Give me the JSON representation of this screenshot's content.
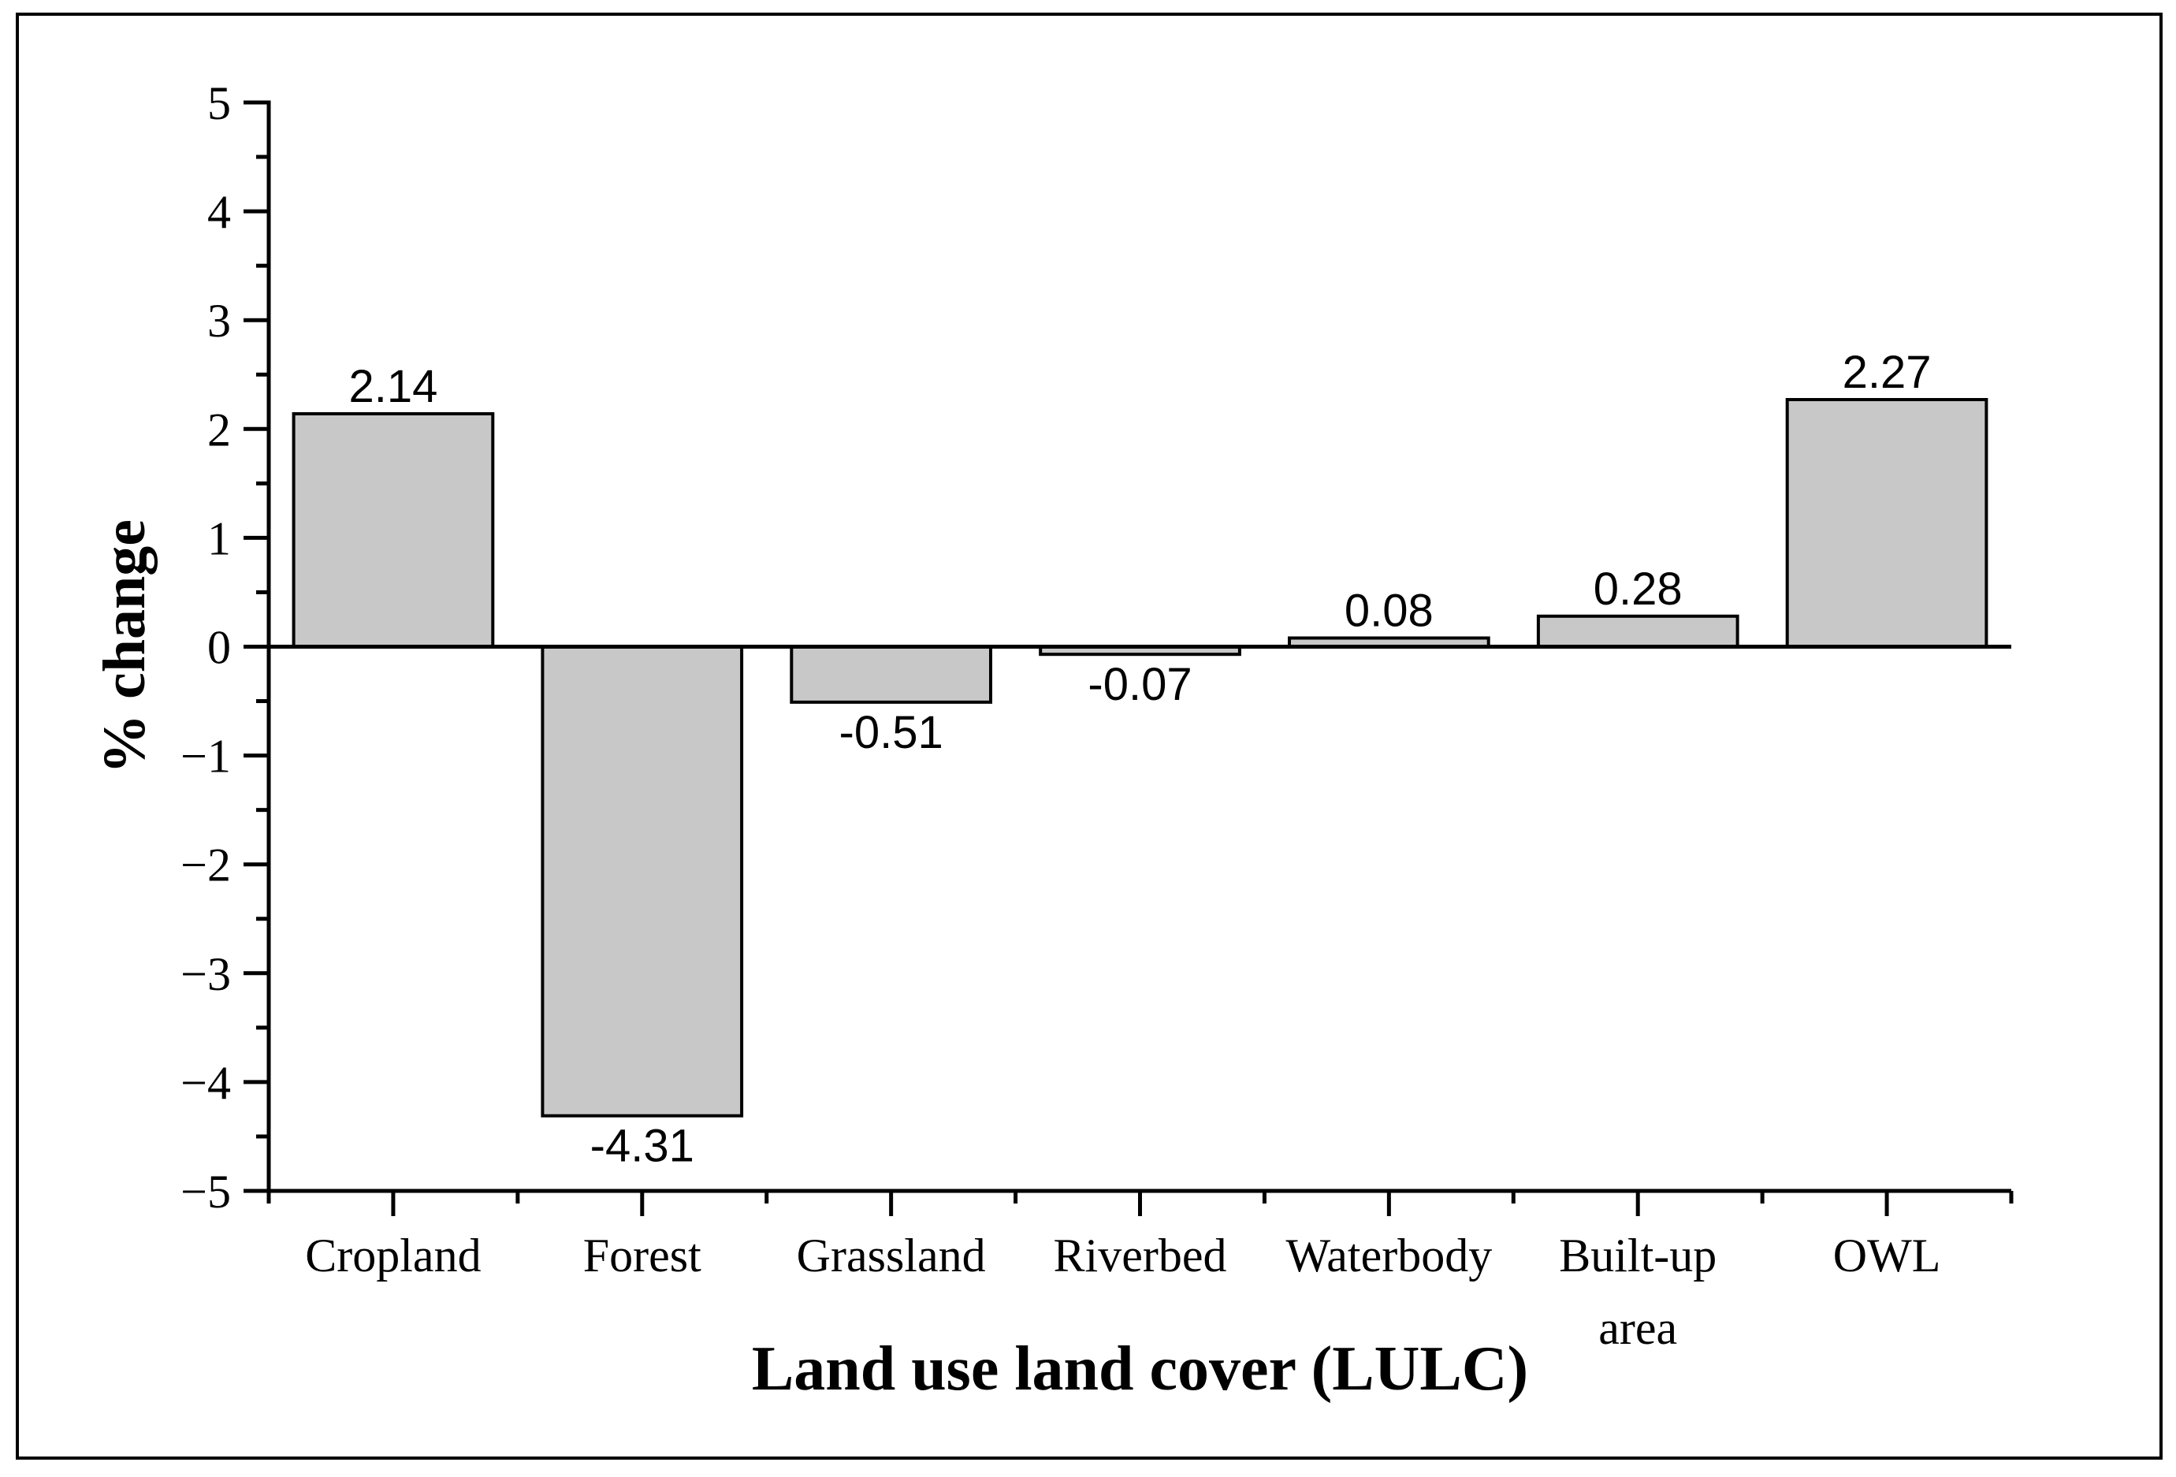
{
  "figure": {
    "background_color": "#ffffff",
    "border_color": "#000000",
    "axis_color": "#000000",
    "text_color": "#000000"
  },
  "chart_data": {
    "type": "bar",
    "title": "",
    "categories": [
      "Cropland",
      "Forest",
      "Grassland",
      "Riverbed",
      "Waterbody",
      "Built-up area",
      "OWL"
    ],
    "category_label_lines": [
      [
        "Cropland"
      ],
      [
        "Forest"
      ],
      [
        "Grassland"
      ],
      [
        "Riverbed"
      ],
      [
        "Waterbody"
      ],
      [
        "Built-up",
        "area"
      ],
      [
        "OWL"
      ]
    ],
    "values": [
      2.14,
      -4.31,
      -0.51,
      -0.07,
      0.08,
      0.28,
      2.27
    ],
    "value_labels": [
      "2.14",
      "-4.31",
      "-0.51",
      "-0.07",
      "0.08",
      "0.28",
      "2.27"
    ],
    "xlabel": "Land use land cover (LULC)",
    "ylabel": "% change",
    "ylim": [
      -5,
      5
    ],
    "y_major_ticks": [
      5,
      4,
      3,
      2,
      1,
      0,
      -1,
      -2,
      -3,
      -4,
      -5
    ],
    "y_major_tick_labels": [
      "5",
      "4",
      "3",
      "2",
      "1",
      "0",
      "−1",
      "−2",
      "−3",
      "−4",
      "−5"
    ],
    "y_minor_step": 0.5,
    "bar_fill": "#c8c8c8",
    "bar_edge": "#000000",
    "bar_width_fraction": 0.8,
    "grid": false,
    "legend": null,
    "zero_line": true,
    "tick_direction": "out"
  }
}
